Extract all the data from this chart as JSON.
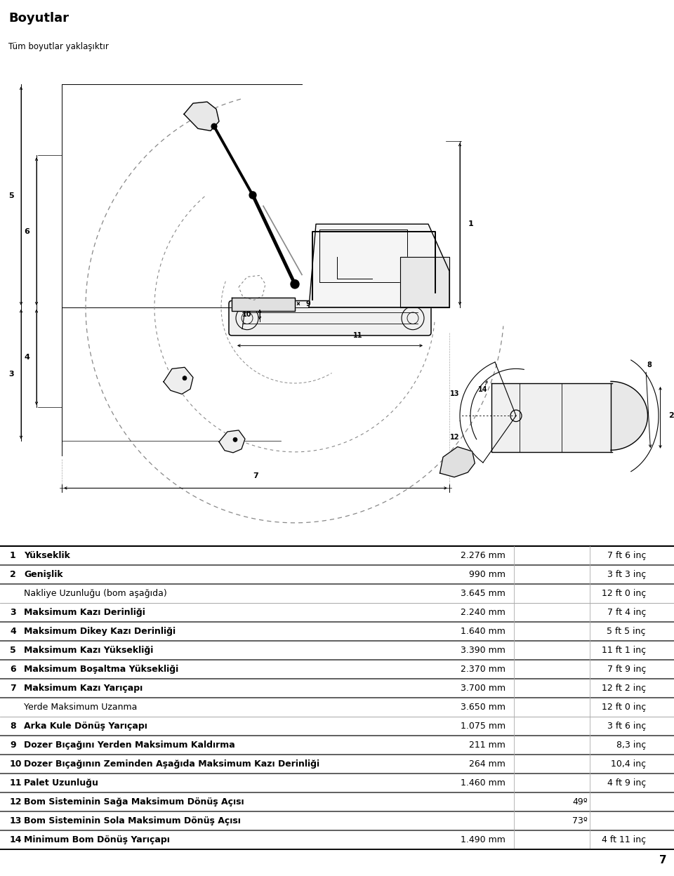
{
  "title": "Boyutlar",
  "subtitle": "Tüm boyutlar yaklaşıktır",
  "header_bg": "#c8c8c8",
  "title_color": "#000000",
  "page_number": "7",
  "table_rows": [
    {
      "num": "1",
      "bold": true,
      "desc": "Yükseklik",
      "mm": "2.276 mm",
      "imperial": "7 ft 6 inç"
    },
    {
      "num": "2",
      "bold": true,
      "desc": "Genişlik",
      "mm": "990 mm",
      "imperial": "3 ft 3 inç"
    },
    {
      "num": "",
      "bold": false,
      "desc": "Nakliye Uzunluğu (bom aşağıda)",
      "mm": "3.645 mm",
      "imperial": "12 ft 0 inç"
    },
    {
      "num": "3",
      "bold": true,
      "desc": "Maksimum Kazı Derinliği",
      "mm": "2.240 mm",
      "imperial": "7 ft 4 inç"
    },
    {
      "num": "4",
      "bold": true,
      "desc": "Maksimum Dikey Kazı Derinliği",
      "mm": "1.640 mm",
      "imperial": "5 ft 5 inç"
    },
    {
      "num": "5",
      "bold": true,
      "desc": "Maksimum Kazı Yüksekliği",
      "mm": "3.390 mm",
      "imperial": "11 ft 1 inç"
    },
    {
      "num": "6",
      "bold": true,
      "desc": "Maksimum Boşaltma Yüksekliği",
      "mm": "2.370 mm",
      "imperial": "7 ft 9 inç"
    },
    {
      "num": "7",
      "bold": true,
      "desc": "Maksimum Kazı Yarıçapı",
      "mm": "3.700 mm",
      "imperial": "12 ft 2 inç"
    },
    {
      "num": "",
      "bold": false,
      "desc": "Yerde Maksimum Uzanma",
      "mm": "3.650 mm",
      "imperial": "12 ft 0 inç"
    },
    {
      "num": "8",
      "bold": true,
      "desc": "Arka Kule Dönüş Yarıçapı",
      "mm": "1.075 mm",
      "imperial": "3 ft 6 inç"
    },
    {
      "num": "9",
      "bold": true,
      "desc": "Dozer Bıçağını Yerden Maksimum Kaldırma",
      "mm": "211 mm",
      "imperial": "8,3 inç"
    },
    {
      "num": "10",
      "bold": true,
      "desc": "Dozer Bıçağının Zeminden Aşağıda Maksimum Kazı Derinliği",
      "mm": "264 mm",
      "imperial": "10,4 inç"
    },
    {
      "num": "11",
      "bold": true,
      "desc": "Palet Uzunluğu",
      "mm": "1.460 mm",
      "imperial": "4 ft 9 inç"
    },
    {
      "num": "12",
      "bold": true,
      "desc": "Bom Sisteminin Sağa Maksimum Dönüş Açısı",
      "mm": "49º",
      "imperial": ""
    },
    {
      "num": "13",
      "bold": true,
      "desc": "Bom Sisteminin Sola Maksimum Dönüş Açısı",
      "mm": "73º",
      "imperial": ""
    },
    {
      "num": "14",
      "bold": true,
      "desc": "Minimum Bom Dönüş Yarıçapı",
      "mm": "1.490 mm",
      "imperial": "4 ft 11 inç"
    }
  ],
  "bg_color": "#ffffff",
  "text_color": "#000000",
  "lc": "#000000",
  "dlc": "#888888"
}
